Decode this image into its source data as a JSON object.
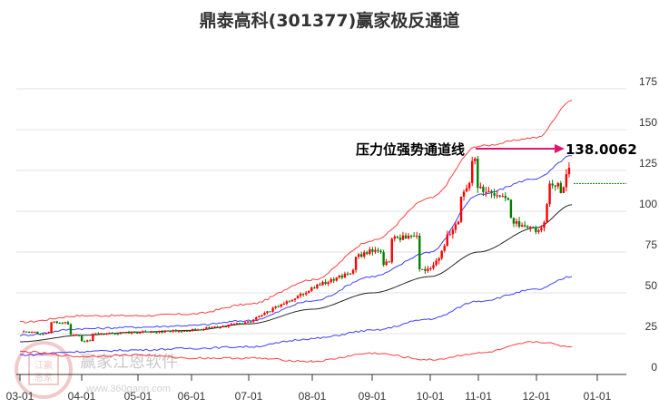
{
  "title": "鼎泰高科(301377)赢家极反通道",
  "watermark": {
    "brand": "赢家江恩软件",
    "url": "www.360gann.com",
    "seal_top": "江赢",
    "seal_bottom": "恩家"
  },
  "annotation": {
    "label": "压力位强势通道线",
    "value": "138.0062",
    "arrow_color": "#e0156e"
  },
  "colors": {
    "up_candle": "#ff0000",
    "down_candle": "#008000",
    "upper_band": "#ff0000",
    "mid_band": "#0000ff",
    "ma_line": "#000000",
    "lower_blue": "#0000ff",
    "lower_red": "#ff0000",
    "grid": "#e0e0e0",
    "last_price_line": "#008000"
  },
  "chart_data": {
    "type": "candlestick",
    "title": "鼎泰高科(301377)赢家极反通道",
    "xlabel": "",
    "ylabel": "",
    "ylim": [
      0,
      175
    ],
    "yticks": [
      0,
      25,
      50,
      75,
      100,
      125,
      150,
      175
    ],
    "xticks": [
      "03-01",
      "04-01",
      "05-01",
      "06-01",
      "07-01",
      "08-01",
      "09-01",
      "10-01",
      "11-01",
      "12-01",
      "01-01"
    ],
    "grid": true,
    "y_axis_position": "right",
    "annotation": {
      "text": "压力位强势通道线",
      "value": 138.0062
    },
    "last_price": 117,
    "price_approx": {
      "months": [
        "03-01",
        "04-01",
        "05-01",
        "06-01",
        "07-01",
        "08-01",
        "09-01",
        "10-01",
        "11-01",
        "12-01",
        "12-20"
      ],
      "close": [
        26,
        24,
        26,
        27,
        32,
        53,
        68,
        68,
        115,
        100,
        117
      ]
    },
    "series": [
      {
        "name": "upper_red_band",
        "color": "#ff0000",
        "values": [
          32,
          36,
          36,
          37,
          43,
          58,
          82,
          108,
          140,
          145,
          168
        ]
      },
      {
        "name": "upper_blue_band",
        "color": "#0000ff",
        "values": [
          24,
          28,
          29,
          30,
          33,
          45,
          60,
          75,
          110,
          120,
          134
        ]
      },
      {
        "name": "black_ma",
        "color": "#000000",
        "values": [
          20,
          24,
          26,
          27,
          31,
          40,
          50,
          60,
          75,
          90,
          104
        ]
      },
      {
        "name": "lower_blue_band",
        "color": "#0000ff",
        "values": [
          12,
          14,
          15,
          16,
          17,
          22,
          27,
          34,
          45,
          52,
          60
        ]
      },
      {
        "name": "lower_red_band",
        "color": "#ff0000",
        "values": [
          14,
          11,
          12,
          10,
          10,
          8,
          13,
          9,
          13,
          20,
          17
        ]
      }
    ]
  }
}
